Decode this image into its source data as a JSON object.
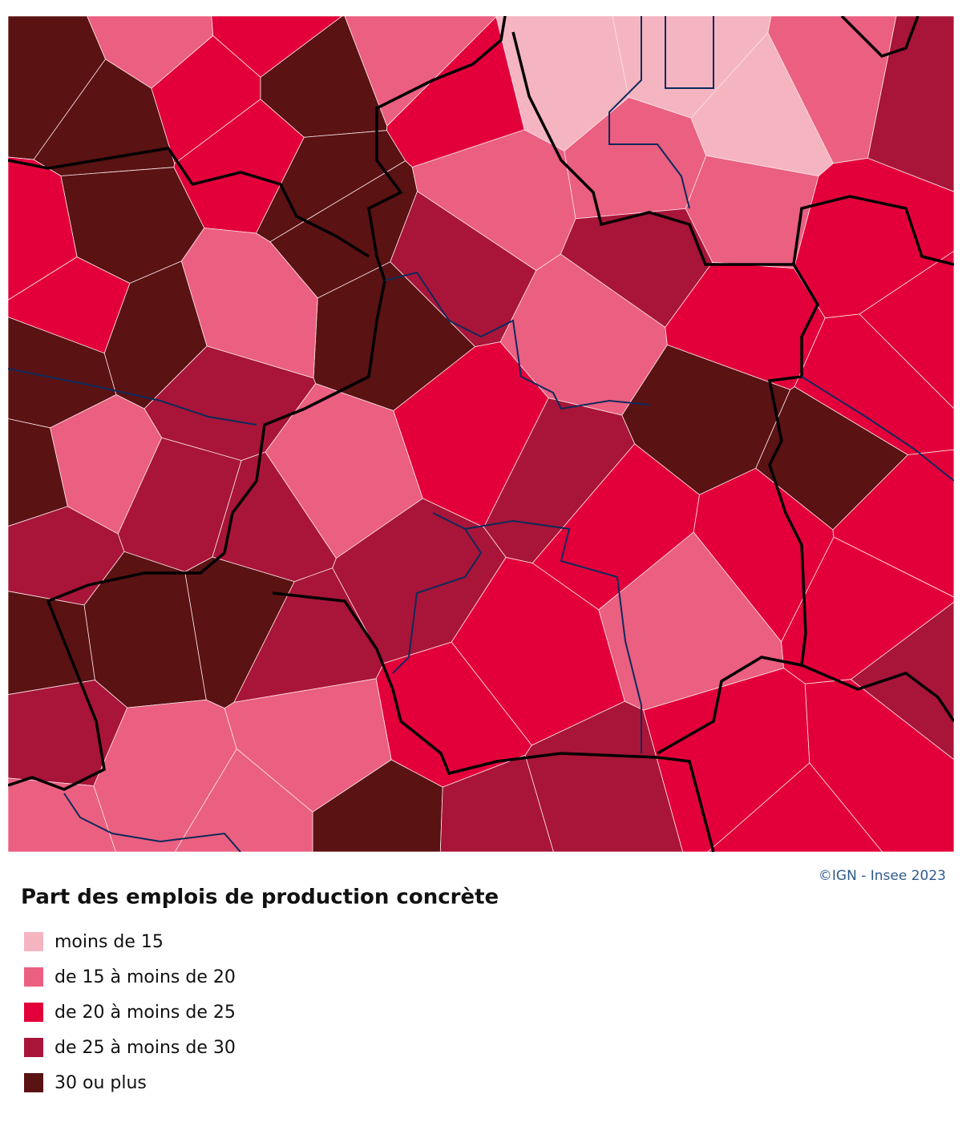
{
  "map": {
    "credit": "©IGN - Insee 2023"
  },
  "legend": {
    "title": "Part des emplois de production concrète",
    "items": [
      {
        "label": "moins de 15",
        "color": "#f4b5c1"
      },
      {
        "label": "de 15 à moins de 20",
        "color": "#eb5f80"
      },
      {
        "label": "de 20 à moins de 25",
        "color": "#e3003a"
      },
      {
        "label": "de 25 à moins de 30",
        "color": "#a81538"
      },
      {
        "label": "30 ou plus",
        "color": "#5a1213"
      }
    ]
  }
}
